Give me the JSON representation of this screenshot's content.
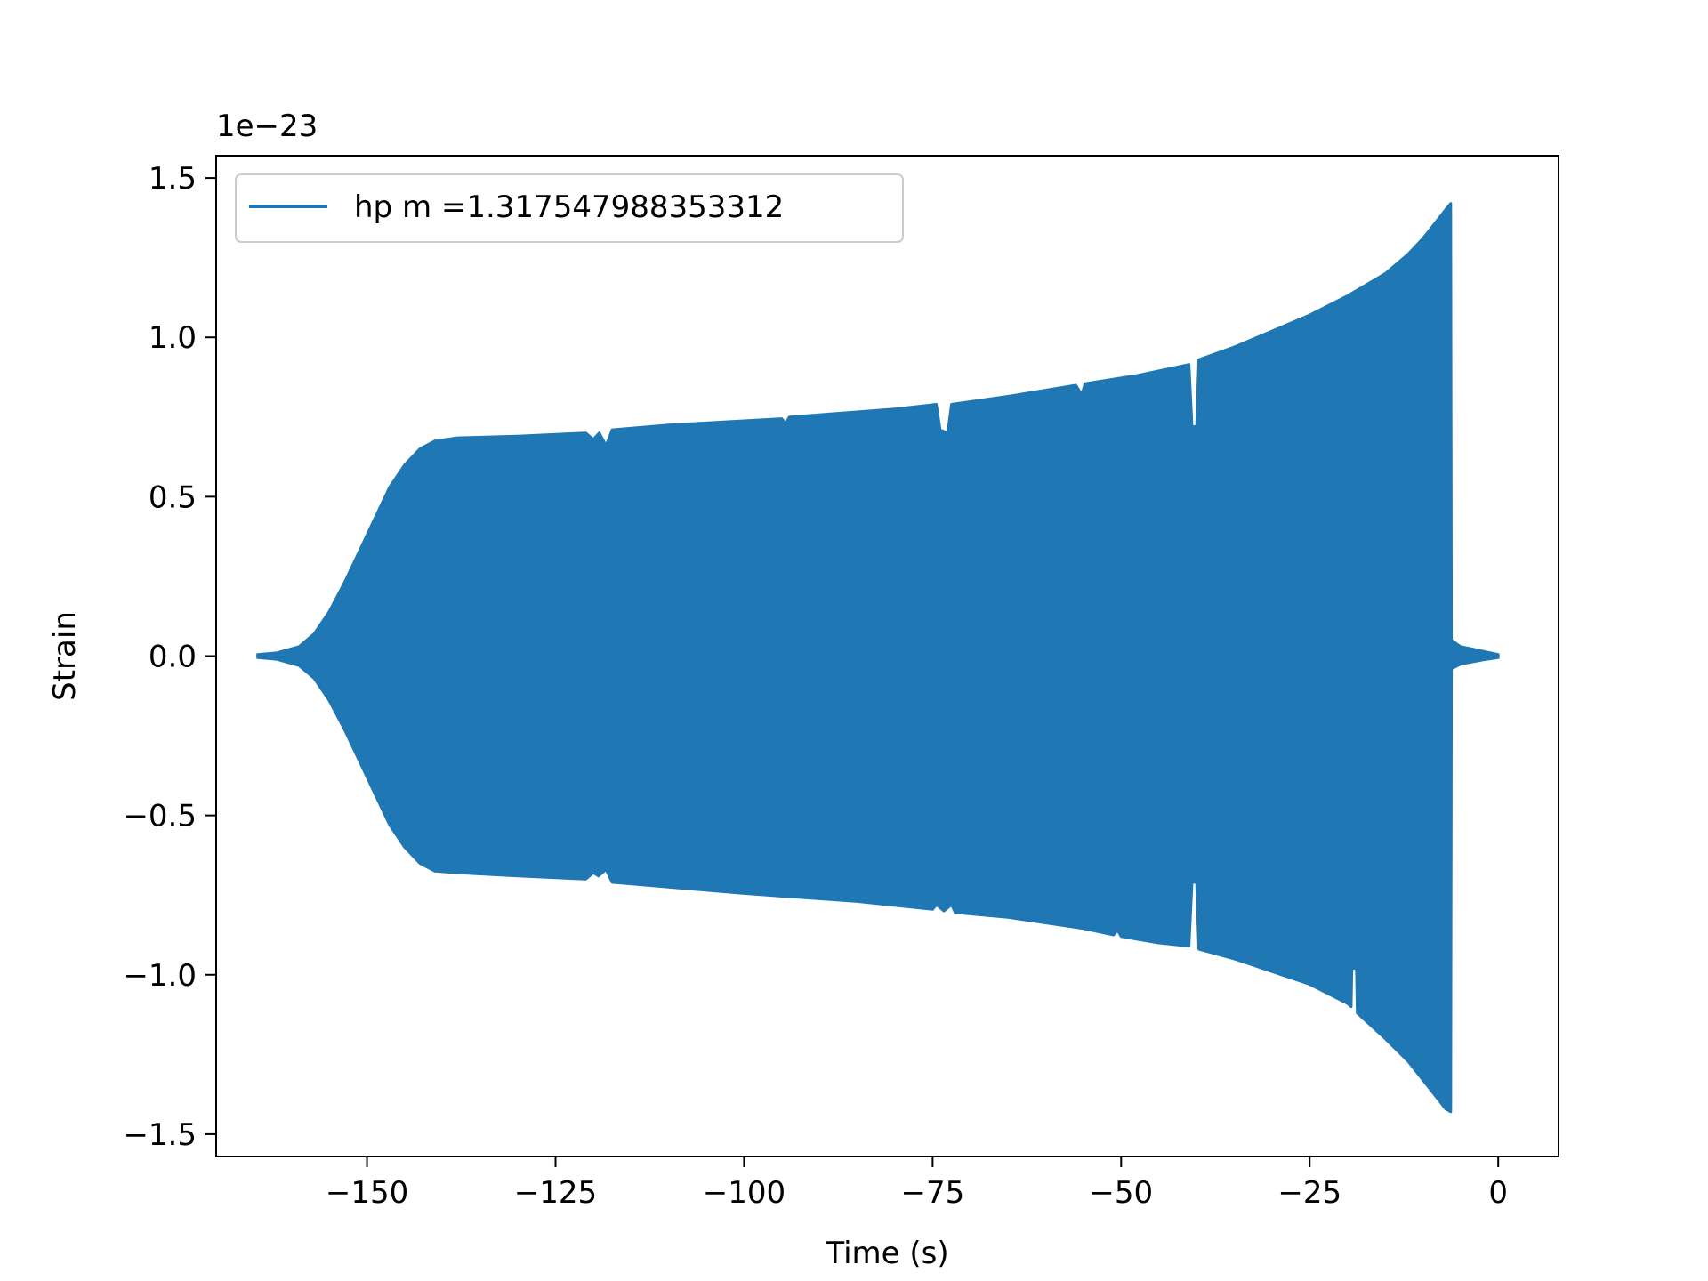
{
  "chart_data": {
    "type": "area",
    "xlabel": "Time (s)",
    "ylabel": "Strain",
    "y_offset_text": "1e−23",
    "y_scale": 1e-23,
    "xlim": [
      -170,
      8
    ],
    "ylim": [
      -1.57,
      1.57
    ],
    "x_ticks": [
      {
        "value": -150,
        "label": "−150"
      },
      {
        "value": -125,
        "label": "−125"
      },
      {
        "value": -100,
        "label": "−100"
      },
      {
        "value": -75,
        "label": "−75"
      },
      {
        "value": -50,
        "label": "−50"
      },
      {
        "value": -25,
        "label": "−25"
      },
      {
        "value": 0,
        "label": "0"
      }
    ],
    "y_ticks": [
      {
        "value": -1.5,
        "label": "−1.5"
      },
      {
        "value": -1.0,
        "label": "−1.0"
      },
      {
        "value": -0.5,
        "label": "−0.5"
      },
      {
        "value": 0.0,
        "label": "0.0"
      },
      {
        "value": 0.5,
        "label": "0.5"
      },
      {
        "value": 1.0,
        "label": "1.0"
      },
      {
        "value": 1.5,
        "label": "1.5"
      }
    ],
    "grid": false,
    "legend": {
      "placement": "top-left"
    },
    "series": [
      {
        "name": "hp m =1.317547988353312",
        "color": "#1f77b4",
        "upper_envelope": [
          [
            -164.5,
            0.005
          ],
          [
            -162,
            0.01
          ],
          [
            -159,
            0.03
          ],
          [
            -157,
            0.07
          ],
          [
            -155,
            0.14
          ],
          [
            -153,
            0.23
          ],
          [
            -151,
            0.33
          ],
          [
            -149,
            0.43
          ],
          [
            -147,
            0.53
          ],
          [
            -145,
            0.6
          ],
          [
            -143,
            0.65
          ],
          [
            -141,
            0.675
          ],
          [
            -138,
            0.685
          ],
          [
            -130,
            0.69
          ],
          [
            -121,
            0.7
          ],
          [
            -120,
            0.68
          ],
          [
            -119.2,
            0.7
          ],
          [
            -118.3,
            0.66
          ],
          [
            -117.5,
            0.71
          ],
          [
            -110,
            0.725
          ],
          [
            -95,
            0.745
          ],
          [
            -94.5,
            0.73
          ],
          [
            -94,
            0.75
          ],
          [
            -80,
            0.775
          ],
          [
            -74.5,
            0.79
          ],
          [
            -74,
            0.71
          ],
          [
            -73,
            0.7
          ],
          [
            -72.5,
            0.79
          ],
          [
            -65,
            0.815
          ],
          [
            -56,
            0.85
          ],
          [
            -55.2,
            0.82
          ],
          [
            -54.8,
            0.855
          ],
          [
            -48,
            0.88
          ],
          [
            -41,
            0.915
          ],
          [
            -40.6,
            0.72
          ],
          [
            -40,
            0.72
          ],
          [
            -39.7,
            0.93
          ],
          [
            -35,
            0.97
          ],
          [
            -30,
            1.02
          ],
          [
            -25,
            1.07
          ],
          [
            -20,
            1.13
          ],
          [
            -15,
            1.2
          ],
          [
            -12,
            1.26
          ],
          [
            -10,
            1.31
          ],
          [
            -8,
            1.37
          ],
          [
            -7,
            1.4
          ],
          [
            -6.3,
            1.42
          ],
          [
            -6.2,
            0.05
          ],
          [
            -5,
            0.03
          ],
          [
            -2,
            0.015
          ],
          [
            0,
            0.005
          ]
        ],
        "lower_envelope": [
          [
            -164.5,
            -0.005
          ],
          [
            -162,
            -0.01
          ],
          [
            -159,
            -0.03
          ],
          [
            -157,
            -0.07
          ],
          [
            -155,
            -0.14
          ],
          [
            -153,
            -0.23
          ],
          [
            -151,
            -0.33
          ],
          [
            -149,
            -0.43
          ],
          [
            -147,
            -0.53
          ],
          [
            -145,
            -0.6
          ],
          [
            -143,
            -0.65
          ],
          [
            -141,
            -0.675
          ],
          [
            -138,
            -0.68
          ],
          [
            -130,
            -0.69
          ],
          [
            -121,
            -0.7
          ],
          [
            -120,
            -0.68
          ],
          [
            -119.3,
            -0.69
          ],
          [
            -118.3,
            -0.67
          ],
          [
            -117.5,
            -0.71
          ],
          [
            -110,
            -0.725
          ],
          [
            -100,
            -0.745
          ],
          [
            -85,
            -0.77
          ],
          [
            -75,
            -0.795
          ],
          [
            -74.5,
            -0.78
          ],
          [
            -73.5,
            -0.8
          ],
          [
            -72.5,
            -0.78
          ],
          [
            -72,
            -0.805
          ],
          [
            -65,
            -0.82
          ],
          [
            -55,
            -0.855
          ],
          [
            -51,
            -0.875
          ],
          [
            -50.5,
            -0.86
          ],
          [
            -50,
            -0.88
          ],
          [
            -45,
            -0.9
          ],
          [
            -41,
            -0.91
          ],
          [
            -40.6,
            -0.71
          ],
          [
            -40,
            -0.71
          ],
          [
            -39.7,
            -0.92
          ],
          [
            -35,
            -0.95
          ],
          [
            -30,
            -0.99
          ],
          [
            -25,
            -1.03
          ],
          [
            -20,
            -1.09
          ],
          [
            -19.5,
            -1.1
          ],
          [
            -19.4,
            -0.98
          ],
          [
            -18.8,
            -0.98
          ],
          [
            -18.7,
            -1.12
          ],
          [
            -15,
            -1.2
          ],
          [
            -12,
            -1.27
          ],
          [
            -10,
            -1.33
          ],
          [
            -8,
            -1.39
          ],
          [
            -7,
            -1.42
          ],
          [
            -6.3,
            -1.43
          ],
          [
            -6.2,
            -0.04
          ],
          [
            -5,
            -0.025
          ],
          [
            -2,
            -0.012
          ],
          [
            0,
            -0.005
          ]
        ]
      }
    ]
  }
}
